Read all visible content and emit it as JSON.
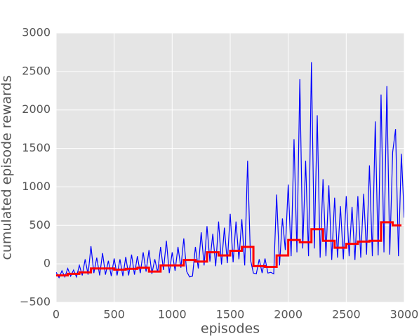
{
  "chart_data": {
    "type": "line",
    "x_label": "episodes",
    "y_label": "cumulated episode rewards",
    "xlim": [
      0,
      3000
    ],
    "xticks": [
      0,
      500,
      1000,
      1500,
      2000,
      2500,
      3000
    ],
    "ylim": [
      -500,
      3000
    ],
    "yticks": [
      {
        "value": -500,
        "label": "−500"
      },
      0,
      500,
      1000,
      1500,
      2000,
      2500,
      3000
    ],
    "grid": true,
    "background": "#e5e5e5",
    "series": [
      {
        "color": "#0000ff",
        "step": false,
        "x": [
          0,
          25,
          50,
          75,
          100,
          125,
          150,
          175,
          200,
          225,
          250,
          275,
          300,
          325,
          350,
          375,
          400,
          425,
          450,
          475,
          500,
          525,
          550,
          575,
          600,
          625,
          650,
          675,
          700,
          725,
          750,
          775,
          800,
          825,
          850,
          875,
          900,
          925,
          950,
          975,
          1000,
          1025,
          1050,
          1075,
          1100,
          1125,
          1150,
          1175,
          1200,
          1225,
          1250,
          1275,
          1300,
          1325,
          1350,
          1375,
          1400,
          1425,
          1450,
          1475,
          1500,
          1525,
          1550,
          1575,
          1600,
          1625,
          1650,
          1675,
          1700,
          1725,
          1750,
          1775,
          1800,
          1825,
          1850,
          1875,
          1900,
          1925,
          1950,
          1975,
          2000,
          2025,
          2050,
          2075,
          2100,
          2125,
          2150,
          2175,
          2200,
          2225,
          2250,
          2275,
          2300,
          2325,
          2350,
          2375,
          2400,
          2425,
          2450,
          2475,
          2500,
          2525,
          2550,
          2575,
          2600,
          2625,
          2650,
          2675,
          2700,
          2725,
          2750,
          2775,
          2800,
          2825,
          2850,
          2875,
          2900,
          2925,
          2950,
          2975,
          3000
        ],
        "values": [
          -110,
          -180,
          -90,
          -170,
          -60,
          -160,
          -80,
          -170,
          -20,
          -150,
          60,
          -140,
          230,
          -120,
          80,
          -150,
          140,
          -140,
          40,
          -160,
          70,
          -150,
          60,
          -160,
          90,
          -150,
          120,
          -140,
          100,
          -120,
          150,
          -100,
          180,
          -130,
          60,
          -110,
          220,
          -80,
          300,
          -120,
          150,
          -90,
          220,
          -50,
          330,
          -100,
          -170,
          -160,
          220,
          -60,
          410,
          -20,
          490,
          30,
          390,
          -30,
          550,
          -10,
          470,
          10,
          650,
          20,
          550,
          60,
          580,
          -20,
          1340,
          50,
          -120,
          -130,
          60,
          -120,
          70,
          -120,
          -110,
          -130,
          900,
          -20,
          590,
          180,
          1030,
          100,
          1620,
          150,
          2400,
          200,
          1340,
          100,
          2620,
          200,
          1930,
          80,
          1100,
          100,
          1020,
          50,
          860,
          80,
          750,
          60,
          880,
          100,
          740,
          50,
          880,
          80,
          910,
          120,
          1280,
          100,
          1850,
          110,
          2200,
          150,
          2310,
          120,
          1450,
          1750,
          100,
          1430,
          600
        ]
      },
      {
        "color": "#ff0000",
        "step": true,
        "x": [
          0,
          100,
          200,
          300,
          400,
          500,
          600,
          700,
          800,
          900,
          1000,
          1100,
          1200,
          1300,
          1400,
          1500,
          1600,
          1700,
          1800,
          1900,
          2000,
          2100,
          2200,
          2300,
          2400,
          2500,
          2600,
          2700,
          2800,
          2900
        ],
        "values": [
          -150,
          -130,
          -110,
          -60,
          -60,
          -75,
          -65,
          -50,
          -100,
          -20,
          -20,
          50,
          30,
          150,
          110,
          170,
          220,
          -30,
          -40,
          110,
          310,
          280,
          450,
          300,
          210,
          260,
          290,
          300,
          540,
          500
        ]
      }
    ]
  }
}
